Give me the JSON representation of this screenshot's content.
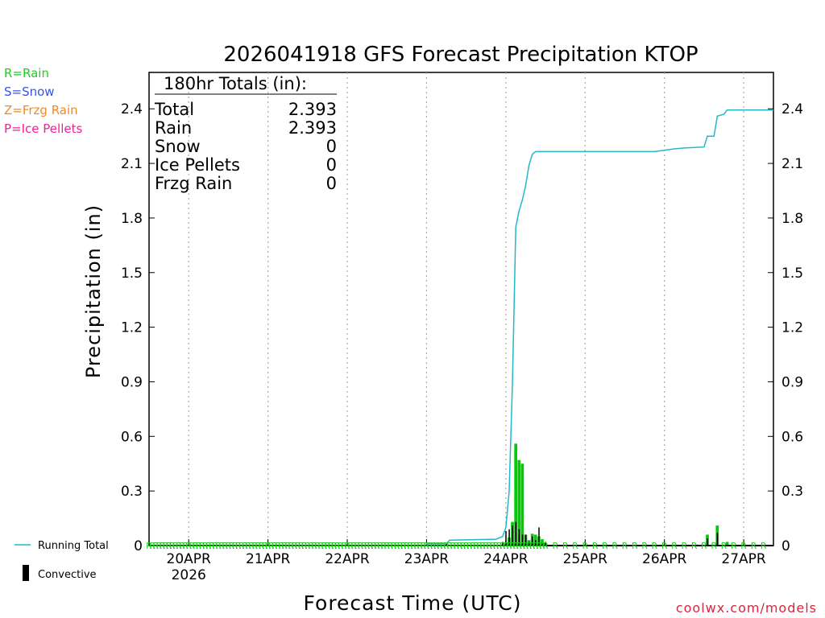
{
  "chart_data": {
    "type": "bar",
    "title": "2026041918 GFS Forecast Precipitation KTOP",
    "xlabel": "Forecast Time (UTC)",
    "ylabel": "Precipitation (in)",
    "ylim": [
      0,
      2.6
    ],
    "yticks": [
      "0",
      "0.3",
      "0.6",
      "0.9",
      "1.2",
      "1.5",
      "1.8",
      "2.1",
      "2.4"
    ],
    "ytick_values": [
      0,
      0.3,
      0.6,
      0.9,
      1.2,
      1.5,
      1.8,
      2.1,
      2.4
    ],
    "xlim_hours": [
      -6,
      183
    ],
    "x_ticks": [
      {
        "hour": 6,
        "label": "20APR",
        "sub": "2026"
      },
      {
        "hour": 30,
        "label": "21APR"
      },
      {
        "hour": 54,
        "label": "22APR"
      },
      {
        "hour": 78,
        "label": "23APR"
      },
      {
        "hour": 102,
        "label": "24APR"
      },
      {
        "hour": 126,
        "label": "25APR"
      },
      {
        "hour": 150,
        "label": "26APR"
      },
      {
        "hour": 174,
        "label": "27APR"
      }
    ],
    "totals_box": {
      "heading": "180hr Totals (in):",
      "rows": [
        {
          "label": "Total",
          "value": "2.393"
        },
        {
          "label": "Rain",
          "value": "2.393"
        },
        {
          "label": "Snow",
          "value": "0"
        },
        {
          "label": "Ice Pellets",
          "value": "0"
        },
        {
          "label": "Frzg Rain",
          "value": "0"
        }
      ]
    },
    "type_legend": [
      {
        "text": "R=Rain",
        "color": "#22cc22"
      },
      {
        "text": "S=Snow",
        "color": "#3355ee"
      },
      {
        "text": "Z=Frzg Rain",
        "color": "#f08a24"
      },
      {
        "text": "P=Ice Pellets",
        "color": "#ee2299"
      }
    ],
    "series_legend": [
      {
        "name": "Running Total",
        "color": "#22b8c8"
      },
      {
        "name": "Convective",
        "color": "#000000"
      }
    ],
    "precip_type_marker": "R",
    "series": [
      {
        "name": "Rain",
        "color": "#00cc00",
        "points": [
          [
            84,
            0.004
          ],
          [
            99,
            0.003
          ],
          [
            102,
            0.01
          ],
          [
            103,
            0.045
          ],
          [
            104,
            0.13
          ],
          [
            105,
            0.56
          ],
          [
            106,
            0.47
          ],
          [
            107,
            0.45
          ],
          [
            108,
            0.06
          ],
          [
            109,
            0.03
          ],
          [
            110,
            0.065
          ],
          [
            111,
            0.06
          ],
          [
            112,
            0.05
          ],
          [
            113,
            0.035
          ],
          [
            114,
            0.015
          ],
          [
            147,
            0.002
          ],
          [
            153,
            0.004
          ],
          [
            160,
            0.005
          ],
          [
            163,
            0.06
          ],
          [
            166,
            0.11
          ],
          [
            169,
            0.02
          ]
        ]
      },
      {
        "name": "Convective",
        "color": "#000000",
        "points": [
          [
            84,
            0.01
          ],
          [
            101,
            0.02
          ],
          [
            102,
            0.08
          ],
          [
            103,
            0.09
          ],
          [
            104,
            0.11
          ],
          [
            105,
            0.13
          ],
          [
            106,
            0.09
          ],
          [
            107,
            0.06
          ],
          [
            108,
            0.06
          ],
          [
            109,
            0.02
          ],
          [
            110,
            0.05
          ],
          [
            111,
            0.03
          ],
          [
            112,
            0.1
          ],
          [
            113,
            0.01
          ],
          [
            114,
            0.02
          ],
          [
            163,
            0.04
          ],
          [
            166,
            0.07
          ]
        ]
      },
      {
        "name": "Running Total",
        "color": "#22b8c8",
        "points": [
          [
            -6,
            0
          ],
          [
            78,
            0
          ],
          [
            78,
            0.01
          ],
          [
            84,
            0.01
          ],
          [
            85,
            0.03
          ],
          [
            99,
            0.035
          ],
          [
            101,
            0.05
          ],
          [
            102,
            0.1
          ],
          [
            103,
            0.3
          ],
          [
            104,
            0.9
          ],
          [
            105,
            1.75
          ],
          [
            106,
            1.84
          ],
          [
            107,
            1.9
          ],
          [
            108,
            1.98
          ],
          [
            109,
            2.09
          ],
          [
            110,
            2.15
          ],
          [
            111,
            2.165
          ],
          [
            147,
            2.165
          ],
          [
            149,
            2.17
          ],
          [
            153,
            2.18
          ],
          [
            156,
            2.185
          ],
          [
            162,
            2.19
          ],
          [
            163,
            2.25
          ],
          [
            165,
            2.25
          ],
          [
            166,
            2.36
          ],
          [
            168,
            2.37
          ],
          [
            169,
            2.393
          ],
          [
            183,
            2.393
          ]
        ]
      }
    ]
  },
  "credit": "coolwx.com/models"
}
